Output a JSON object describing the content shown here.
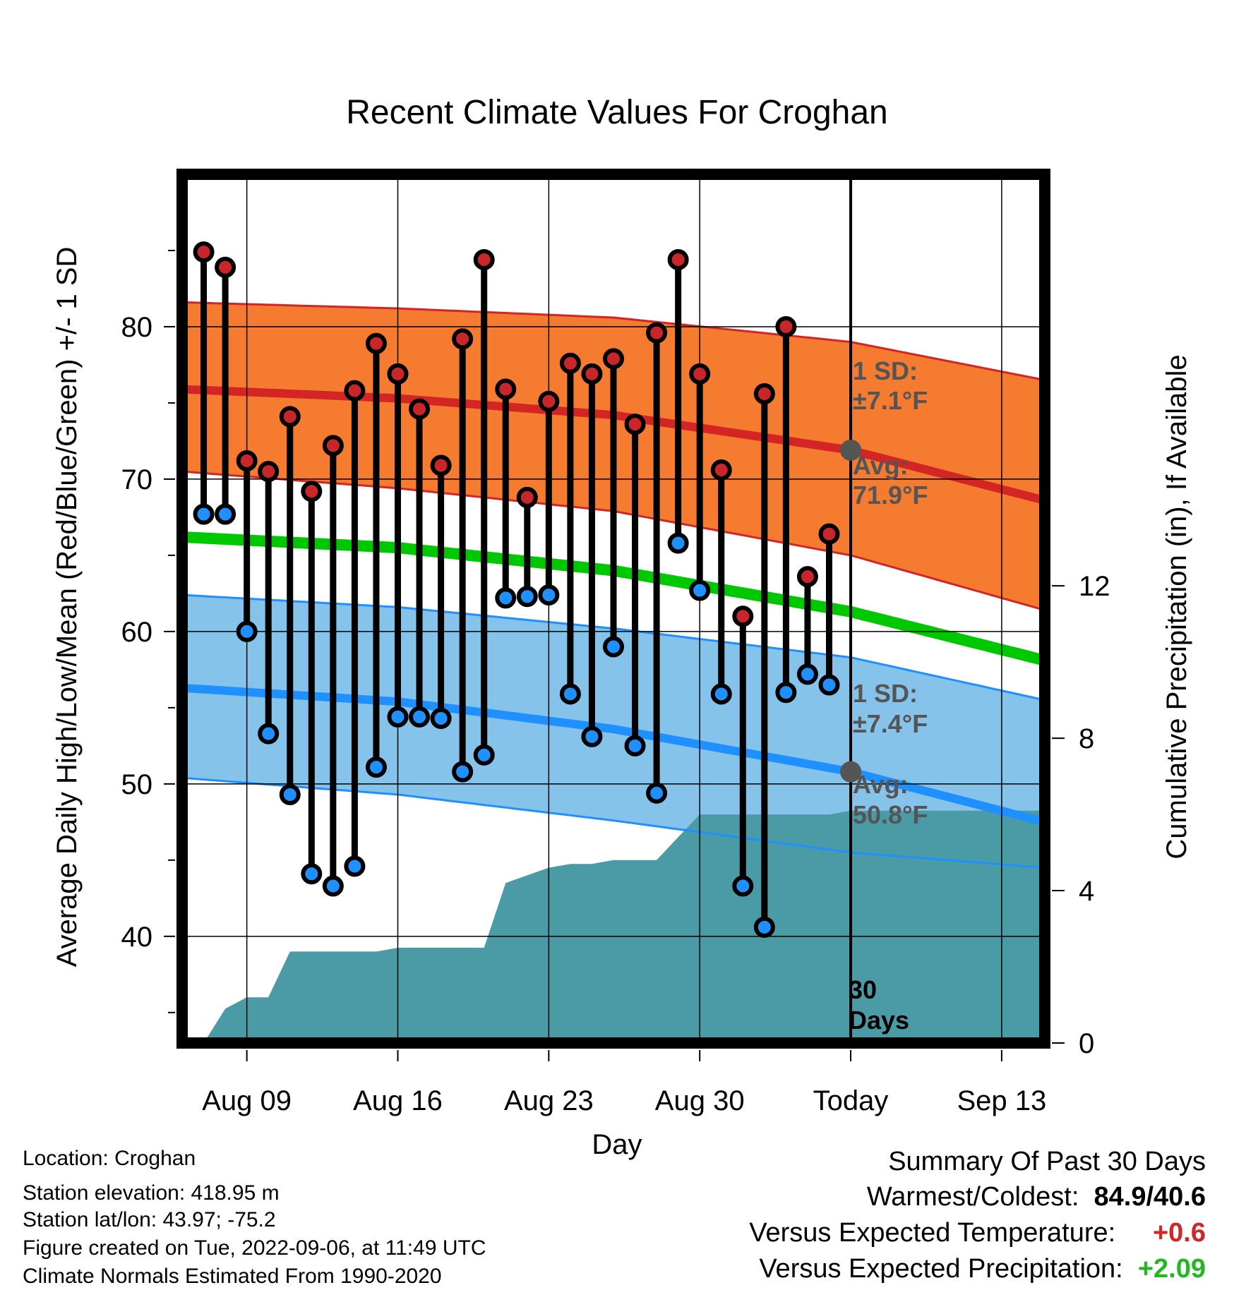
{
  "chart_data": {
    "type": "line",
    "title": "Recent Climate Values For Croghan",
    "xlabel": "Day",
    "ylabel": "Average Daily High/Low/Mean (Red/Blue/Green) +/- 1 SD",
    "y2label": "Cumulative Precipitation (in), If Available",
    "x_tick_labels": [
      "Aug 09",
      "Aug 16",
      "Aug 23",
      "Aug 30",
      "Today",
      "Sep 13"
    ],
    "x_tick_days": [
      "2022-08-09",
      "2022-08-16",
      "2022-08-23",
      "2022-08-30",
      "2022-09-06",
      "2022-09-13"
    ],
    "x_range": [
      "2022-08-06",
      "2022-09-15"
    ],
    "ylim": [
      33,
      90
    ],
    "y_ticks": [
      40,
      50,
      60,
      70,
      80
    ],
    "y2lim": [
      0,
      22.8
    ],
    "y2_ticks": [
      0,
      4,
      8,
      12
    ],
    "today": "2022-09-06",
    "today_label": "30 Days",
    "grid": true,
    "colors": {
      "high": "#d42525",
      "high_band": "#f47b2f",
      "low": "#1e90ff",
      "low_band": "#86c3ea",
      "mean": "#00c800",
      "precip": "#4a9ba5",
      "marker_high": "#c8262a",
      "marker_low": "#1e90ff",
      "positive_temp": "#d42525",
      "positive_precip": "#22b822"
    },
    "normals": {
      "x": [
        "2022-08-06",
        "2022-08-16",
        "2022-08-26",
        "2022-09-06",
        "2022-09-15"
      ],
      "high_avg": [
        75.9,
        75.3,
        74.2,
        71.9,
        68.6
      ],
      "high_sd_upper": [
        81.6,
        81.2,
        80.6,
        79.0,
        76.5
      ],
      "high_sd_lower": [
        70.5,
        69.4,
        67.9,
        65.0,
        61.4
      ],
      "mean": [
        66.2,
        65.5,
        64.0,
        61.3,
        58.1
      ],
      "low_avg": [
        56.3,
        55.4,
        53.6,
        50.8,
        47.5
      ],
      "low_sd_upper": [
        62.4,
        61.6,
        60.2,
        58.3,
        55.5
      ],
      "low_sd_lower": [
        50.4,
        49.3,
        47.6,
        45.5,
        44.5
      ]
    },
    "series": [
      {
        "name": "High",
        "x": [
          "2022-08-07",
          "2022-08-08",
          "2022-08-09",
          "2022-08-10",
          "2022-08-11",
          "2022-08-12",
          "2022-08-13",
          "2022-08-14",
          "2022-08-15",
          "2022-08-16",
          "2022-08-17",
          "2022-08-18",
          "2022-08-19",
          "2022-08-20",
          "2022-08-21",
          "2022-08-22",
          "2022-08-23",
          "2022-08-24",
          "2022-08-25",
          "2022-08-26",
          "2022-08-27",
          "2022-08-28",
          "2022-08-29",
          "2022-08-30",
          "2022-08-31",
          "2022-09-01",
          "2022-09-02",
          "2022-09-03",
          "2022-09-04",
          "2022-09-05"
        ],
        "values": [
          84.9,
          83.9,
          71.2,
          70.5,
          74.1,
          69.2,
          72.2,
          75.8,
          78.9,
          76.9,
          74.6,
          70.9,
          79.2,
          84.4,
          75.9,
          68.8,
          75.1,
          77.6,
          76.9,
          77.9,
          73.6,
          79.6,
          84.4,
          76.9,
          70.6,
          61.0,
          75.6,
          80.0,
          63.6,
          66.4
        ]
      },
      {
        "name": "Low",
        "x": [
          "2022-08-07",
          "2022-08-08",
          "2022-08-09",
          "2022-08-10",
          "2022-08-11",
          "2022-08-12",
          "2022-08-13",
          "2022-08-14",
          "2022-08-15",
          "2022-08-16",
          "2022-08-17",
          "2022-08-18",
          "2022-08-19",
          "2022-08-20",
          "2022-08-21",
          "2022-08-22",
          "2022-08-23",
          "2022-08-24",
          "2022-08-25",
          "2022-08-26",
          "2022-08-27",
          "2022-08-28",
          "2022-08-29",
          "2022-08-30",
          "2022-08-31",
          "2022-09-01",
          "2022-09-02",
          "2022-09-03",
          "2022-09-04",
          "2022-09-05"
        ],
        "values": [
          67.7,
          67.7,
          60.0,
          53.3,
          49.3,
          44.1,
          43.3,
          44.6,
          51.1,
          54.4,
          54.4,
          54.3,
          50.8,
          51.9,
          62.2,
          62.3,
          62.4,
          55.9,
          53.1,
          59.0,
          52.5,
          49.4,
          65.8,
          62.7,
          55.9,
          43.3,
          40.6,
          56.0,
          57.2,
          56.5
        ]
      },
      {
        "name": "Cumulative Precipitation",
        "x": [
          "2022-08-06",
          "2022-08-07",
          "2022-08-08",
          "2022-08-09",
          "2022-08-10",
          "2022-08-11",
          "2022-08-12",
          "2022-08-13",
          "2022-08-14",
          "2022-08-15",
          "2022-08-16",
          "2022-08-17",
          "2022-08-18",
          "2022-08-19",
          "2022-08-20",
          "2022-08-21",
          "2022-08-22",
          "2022-08-23",
          "2022-08-24",
          "2022-08-25",
          "2022-08-26",
          "2022-08-27",
          "2022-08-28",
          "2022-08-29",
          "2022-08-30",
          "2022-08-31",
          "2022-09-01",
          "2022-09-02",
          "2022-09-03",
          "2022-09-04",
          "2022-09-05",
          "2022-09-06",
          "2022-09-15"
        ],
        "values": [
          0.0,
          0.0,
          0.9,
          1.2,
          1.2,
          2.4,
          2.4,
          2.4,
          2.4,
          2.4,
          2.5,
          2.5,
          2.5,
          2.5,
          2.5,
          4.2,
          4.4,
          4.6,
          4.7,
          4.7,
          4.8,
          4.8,
          4.8,
          5.4,
          6.0,
          6.0,
          6.0,
          6.0,
          6.0,
          6.0,
          6.0,
          6.1,
          6.1
        ]
      }
    ],
    "annotations": {
      "high_sd_line1": "1 SD:",
      "high_sd_line2": "±7.1°F",
      "high_avg_line1": "Avg:",
      "high_avg_line2": "71.9°F",
      "low_sd_line1": "1 SD:",
      "low_sd_line2": "±7.4°F",
      "low_avg_line1": "Avg:",
      "low_avg_line2": "50.8°F",
      "today_line1": "30",
      "today_line2": "Days"
    }
  },
  "info": {
    "location": "Location: Croghan",
    "elevation": "Station elevation: 418.95 m",
    "latlon": "Station lat/lon: 43.97; -75.2",
    "created": "Figure created on Tue, 2022-09-06, at 11:49 UTC",
    "normals": "Climate Normals Estimated From 1990-2020"
  },
  "summary": {
    "title": "Summary Of Past 30 Days",
    "warmest_label": "Warmest/Coldest:",
    "warmest_value": "84.9/40.6",
    "temp_label": "Versus Expected Temperature:",
    "temp_value": "+0.6",
    "precip_label": "Versus Expected Precipitation:",
    "precip_value": "+2.09"
  }
}
